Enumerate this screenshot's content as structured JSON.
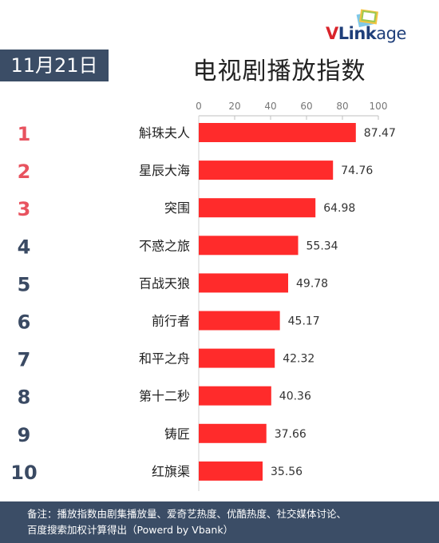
{
  "brand": {
    "v": "V",
    "rest": "Link",
    "age": "age",
    "logo_icon": "stacked-frames-icon"
  },
  "date_label": "11月21日",
  "title": "电视剧播放指数",
  "footer": {
    "line1": "备注：播放指数由剧集播放量、爱奇艺热度、优酷热度、社交媒体讨论、",
    "line2": "百度搜索加权计算得出（Powerd by Vbank）"
  },
  "colors": {
    "bar": "#ff2b2b",
    "top_rank": "#e8535f",
    "rank": "#3a4a63",
    "badge": "#3b4d66"
  },
  "chart_data": {
    "type": "bar",
    "orientation": "horizontal",
    "categories": [
      "斛珠夫人",
      "星辰大海",
      "突围",
      "不惑之旅",
      "百战天狼",
      "前行者",
      "和平之舟",
      "第十二秒",
      "铸匠",
      "红旗渠"
    ],
    "ranks": [
      "1",
      "2",
      "3",
      "4",
      "5",
      "6",
      "7",
      "8",
      "9",
      "10"
    ],
    "values": [
      87.47,
      74.76,
      64.98,
      55.34,
      49.78,
      45.17,
      42.32,
      40.36,
      37.66,
      35.56
    ],
    "value_labels": [
      "87.47",
      "74.76",
      "64.98",
      "55.34",
      "49.78",
      "45.17",
      "42.32",
      "40.36",
      "37.66",
      "35.56"
    ],
    "xlim": [
      0,
      100
    ],
    "xticks": [
      "0",
      "20",
      "40",
      "60",
      "80",
      "100"
    ],
    "axis_position": "top",
    "grid": false,
    "legend": "none",
    "title": "电视剧播放指数"
  }
}
